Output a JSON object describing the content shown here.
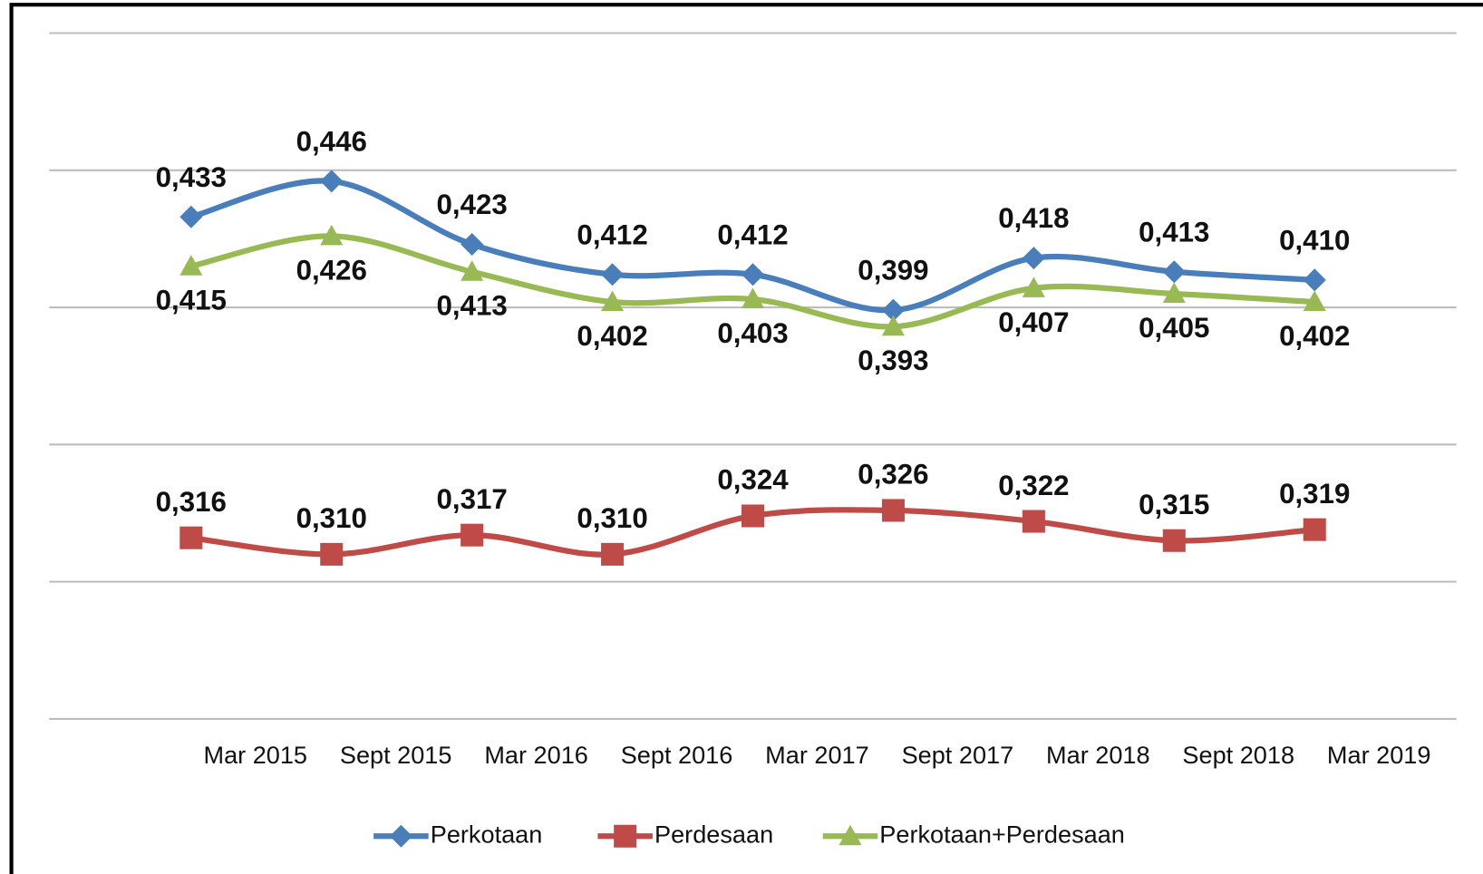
{
  "chart_data": {
    "type": "line",
    "categories": [
      "Mar 2015",
      "Sept 2015",
      "Mar 2016",
      "Sept 2016",
      "Mar 2017",
      "Sept 2017",
      "Mar 2018",
      "Sept 2018",
      "Mar 2019"
    ],
    "series": [
      {
        "name": "Perkotaan",
        "color": "#4a7ebb",
        "marker": "diamond",
        "values": [
          0.433,
          0.446,
          0.423,
          0.412,
          0.412,
          0.399,
          0.418,
          0.413,
          0.41
        ],
        "value_labels": [
          "0,433",
          "0,446",
          "0,423",
          "0,412",
          "0,412",
          "0,399",
          "0,418",
          "0,413",
          "0,410"
        ]
      },
      {
        "name": "Perdesaan",
        "color": "#be4b48",
        "marker": "square",
        "values": [
          0.316,
          0.31,
          0.317,
          0.31,
          0.324,
          0.326,
          0.322,
          0.315,
          0.319
        ],
        "value_labels": [
          "0,316",
          "0,310",
          "0,317",
          "0,310",
          "0,324",
          "0,326",
          "0,322",
          "0,315",
          "0,319"
        ]
      },
      {
        "name": "Perkotaan+Perdesaan",
        "color": "#98b954",
        "marker": "triangle",
        "values": [
          0.415,
          0.426,
          0.413,
          0.402,
          0.403,
          0.393,
          0.407,
          0.405,
          0.402
        ],
        "value_labels": [
          "0,415",
          "0,426",
          "0,413",
          "0,402",
          "0,403",
          "0,393",
          "0,407",
          "0,405",
          "0,402"
        ]
      }
    ],
    "ylim": [
      0.25,
      0.5
    ],
    "yticks": [
      0.25,
      0.3,
      0.35,
      0.4,
      0.45,
      0.5
    ],
    "grid": true,
    "legend": "bottom"
  }
}
